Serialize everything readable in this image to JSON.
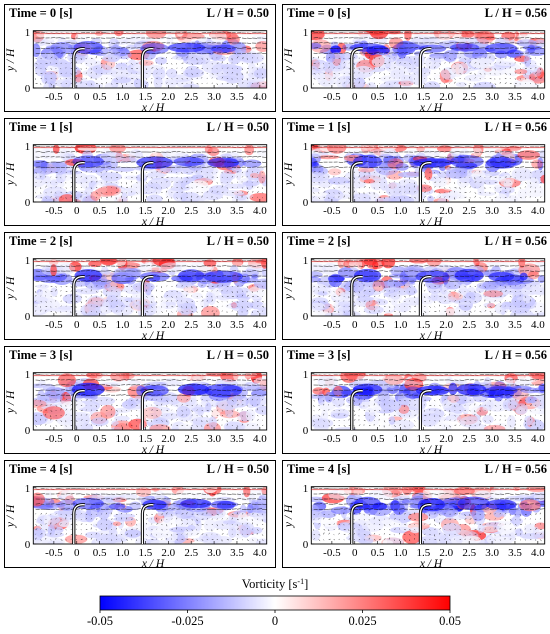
{
  "chart_data": {
    "type": "heatmap",
    "description": "PIV vorticity contour fields with velocity vectors around two curved baffles, 5 time instants for two spacing ratios",
    "panel_label_prefix": "Time = ",
    "panel_label_suffix": " [s]",
    "ratio_prefix": "L / H = ",
    "columns": [
      {
        "ratio": "0.50",
        "second_baffle_x": 1.5
      },
      {
        "ratio": "0.56",
        "second_baffle_x": 1.5
      }
    ],
    "times": [
      "0",
      "1",
      "2",
      "3",
      "4"
    ],
    "xlabel": "x / H",
    "ylabel": "y / H",
    "xlim": [
      -1.0,
      4.2
    ],
    "ylim": [
      0,
      1.05
    ],
    "x_ticks": [
      "-0.5",
      "0",
      "0.5",
      "1.0",
      "1.5",
      "2.0",
      "2.5",
      "3.0",
      "3.5",
      "4.0"
    ],
    "x_tick_values": [
      -0.5,
      0,
      0.5,
      1.0,
      1.5,
      2.0,
      2.5,
      3.0,
      3.5,
      4.0
    ],
    "y_ticks": [
      "0",
      "1"
    ],
    "y_tick_values": [
      0,
      1
    ],
    "baffle_positions": [
      0,
      1.5
    ],
    "colorbar": {
      "title": "Vorticity [s",
      "title_exp": "-1",
      "title_close": "]",
      "ticks": [
        "-0.05",
        "-0.025",
        "0",
        "0.025",
        "0.05"
      ],
      "tick_values": [
        -0.05,
        -0.025,
        0,
        0.025,
        0.05
      ],
      "min_color": "#0000ff",
      "mid_color": "#ffffff",
      "max_color": "#ff0000"
    }
  }
}
